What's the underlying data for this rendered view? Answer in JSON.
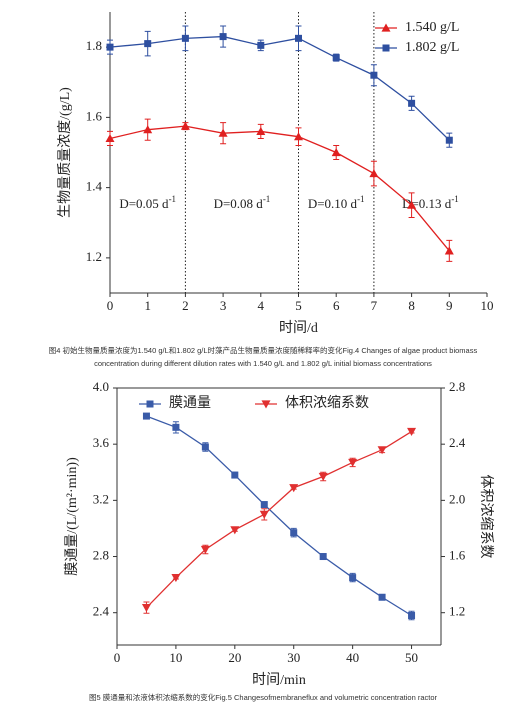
{
  "chart_data": [
    {
      "type": "line",
      "caption": "图4 初始生物量质量浓度为1.540 g/L和1.802 g/L时藻产品生物量质量浓度随稀释率的变化Fig.4 Changes of algae product biomass concentration during different dilution rates with 1.540 g/L and 1.802 g/L initial biomass concentrations",
      "x_label": "时间/d",
      "y_label": "生物量质量浓度/(g/L)",
      "x": [
        0,
        1,
        2,
        3,
        4,
        5,
        6,
        7,
        8,
        9
      ],
      "series": [
        {
          "name": "1.540 g/L",
          "color": "#e02020",
          "marker": "triangle",
          "values": [
            1.54,
            1.565,
            1.575,
            1.555,
            1.56,
            1.545,
            1.5,
            1.44,
            1.35,
            1.22
          ],
          "errors": [
            0.02,
            0.03,
            0.01,
            0.03,
            0.02,
            0.025,
            0.02,
            0.035,
            0.035,
            0.03
          ]
        },
        {
          "name": "1.802 g/L",
          "color": "#2e4fa0",
          "marker": "square",
          "values": [
            1.8,
            1.81,
            1.825,
            1.83,
            1.805,
            1.825,
            1.77,
            1.72,
            1.64,
            1.535
          ],
          "errors": [
            0.02,
            0.035,
            0.035,
            0.03,
            0.015,
            0.035,
            0.01,
            0.03,
            0.02,
            0.02
          ]
        }
      ],
      "xlim": [
        0,
        10
      ],
      "xticks": [
        0,
        1,
        2,
        3,
        4,
        5,
        6,
        7,
        8,
        9,
        10
      ],
      "ylim": [
        1.1,
        1.9
      ],
      "yticks": [
        1.2,
        1.4,
        1.6,
        1.8
      ],
      "vlines": [
        2,
        5,
        7
      ],
      "annotations": [
        {
          "text": "D=0.05 d",
          "sup": "-1"
        },
        {
          "text": "D=0.08 d",
          "sup": "-1"
        },
        {
          "text": "D=0.10 d",
          "sup": "-1"
        },
        {
          "text": "D=0.13 d",
          "sup": "-1"
        }
      ],
      "legend": "upper right"
    },
    {
      "type": "line",
      "caption": "图5 膜通量和浓液体积浓缩系数的变化Fig.5 Changesofmembraneflux and volumetric concentration ractor",
      "x_label": "时间/min",
      "y_label": "膜通量/(L/(m²·min))",
      "y2_label": "体积浓缩系数",
      "x": [
        5,
        10,
        15,
        20,
        25,
        30,
        35,
        40,
        45,
        50
      ],
      "series": [
        {
          "name": "膜通量",
          "color": "#3a5ba8",
          "marker": "square",
          "values": [
            3.8,
            3.72,
            3.58,
            3.38,
            3.17,
            2.97,
            2.8,
            2.65,
            2.51,
            2.38
          ],
          "errors": [
            0.01,
            0.04,
            0.03,
            0.02,
            0.01,
            0.03,
            0.01,
            0.03,
            0.01,
            0.03
          ]
        },
        {
          "name": "体积浓缩系数",
          "color": "#e03030",
          "marker": "triangle-down",
          "axis": "y2",
          "values": [
            1.236,
            1.45,
            1.65,
            1.79,
            1.9,
            2.09,
            2.17,
            2.27,
            2.36,
            2.49
          ],
          "errors": [
            0.04,
            0.01,
            0.03,
            0.01,
            0.04,
            0.01,
            0.03,
            0.03,
            0.02,
            0.01
          ]
        }
      ],
      "xlim": [
        0,
        55
      ],
      "xticks": [
        0,
        10,
        20,
        30,
        40,
        50
      ],
      "ylim": [
        2.17,
        4.0
      ],
      "yticks": [
        2.4,
        2.8,
        3.2,
        3.6,
        {
          "value": 4.0,
          "label": "4.0"
        }
      ],
      "y2lim": [
        0.97,
        2.8
      ],
      "y2ticks": [
        1.2,
        1.6,
        {
          "value": 2.0,
          "label": "2.0"
        },
        2.4,
        2.8
      ],
      "legend": "upper left"
    }
  ]
}
